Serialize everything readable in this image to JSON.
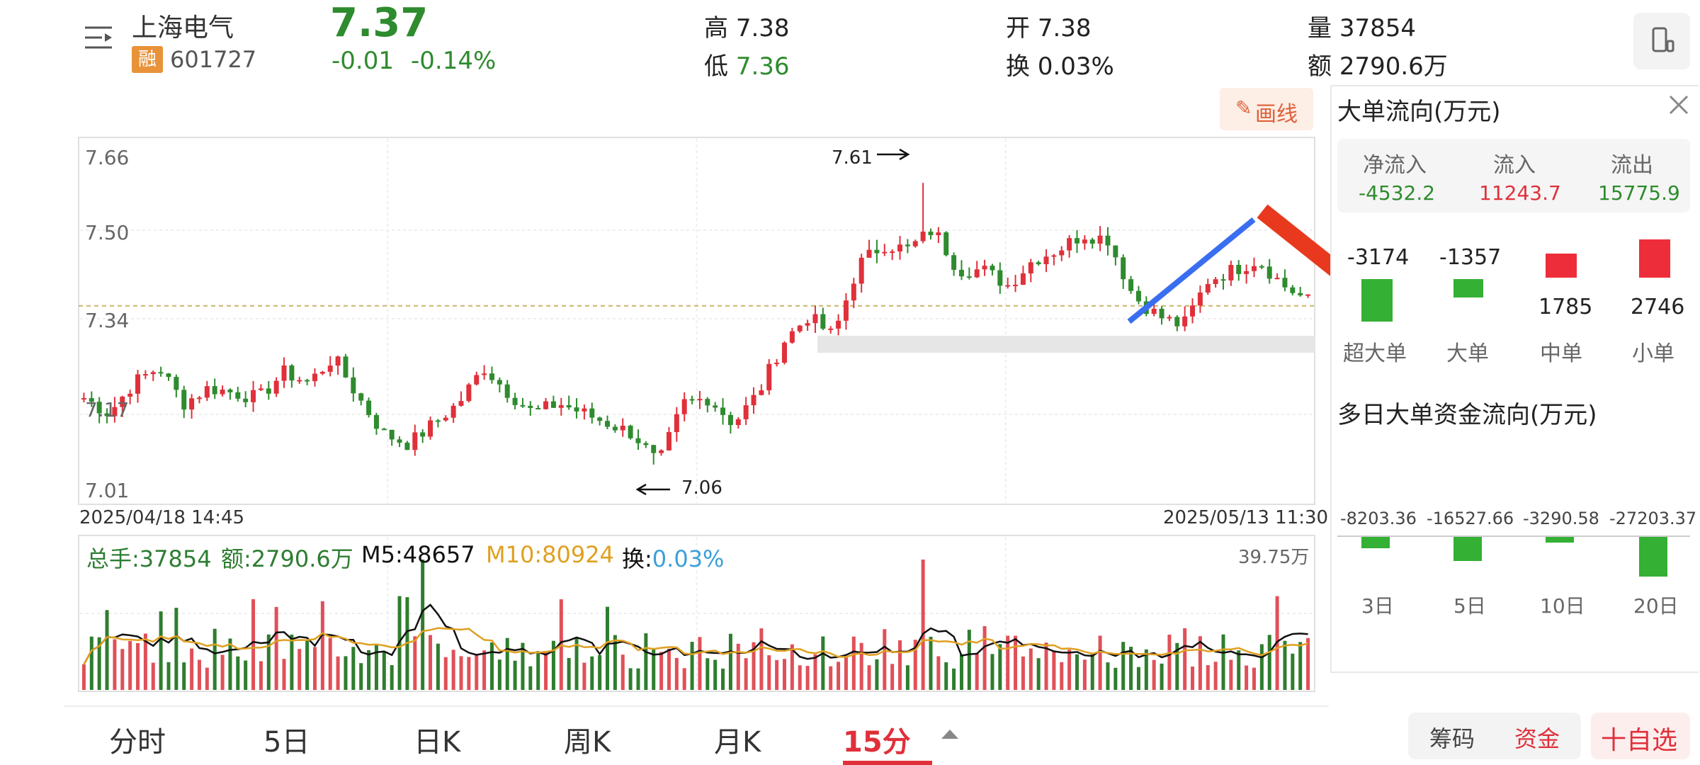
{
  "header": {
    "stock_name": "上海电气",
    "margin_badge": "融",
    "stock_code": "601727",
    "price": "7.37",
    "change": "-0.01",
    "change_pct": "-0.14%",
    "high_label": "高",
    "high_value": "7.38",
    "low_label": "低",
    "low_value": "7.36",
    "open_label": "开",
    "open_value": "7.38",
    "turnover_label": "换",
    "turnover_value": "0.03%",
    "volume_label": "量",
    "volume_value": "37854",
    "amount_label": "额",
    "amount_value": "2790.6万"
  },
  "toolbar": {
    "draw_label": "画线"
  },
  "price_chart": {
    "y_ticks": [
      "7.66",
      "7.50",
      "7.34",
      "7.17",
      "7.01"
    ],
    "max_label": "7.61",
    "min_label": "7.06",
    "start_date": "2025/04/18 14:45",
    "end_date": "2025/05/13 11:30"
  },
  "volume_chart": {
    "total_label": "总手:37854",
    "amount_label": "额:2790.6万",
    "m5_label": "M5:48657",
    "m10_label": "M10:80924",
    "turnover_prefix": "换:",
    "turnover_value": "0.03%",
    "max_label": "39.75万"
  },
  "flow_panel": {
    "title": "大单流向(万元)",
    "net_in_label": "净流入",
    "net_in_value": "-4532.2",
    "in_label": "流入",
    "in_value": "11243.7",
    "out_label": "流出",
    "out_value": "15775.9",
    "bars": [
      {
        "label": "超大单",
        "value": "-3174"
      },
      {
        "label": "大单",
        "value": "-1357"
      },
      {
        "label": "中单",
        "value": "1785"
      },
      {
        "label": "小单",
        "value": "2746"
      }
    ],
    "multi_title": "多日大单资金流向(万元)",
    "multi_bars": [
      {
        "label": "3日",
        "value": "-8203.36"
      },
      {
        "label": "5日",
        "value": "-16527.66"
      },
      {
        "label": "10日",
        "value": "-3290.58"
      },
      {
        "label": "20日",
        "value": "-27203.37"
      }
    ]
  },
  "bottom_tabs": [
    "分时",
    "5日",
    "日K",
    "周K",
    "月K",
    "15分"
  ],
  "bottom_buttons": {
    "chips": "筹码",
    "funds": "资金",
    "add_watch": "十自选"
  },
  "colors": {
    "up": "#e0303a",
    "down": "#2e8b2e",
    "ma5": "#111111",
    "ma10": "#e0a020",
    "turnover": "#3aa0d8"
  },
  "chart_data": {
    "type": "candlestick",
    "ylim": [
      7.01,
      7.66
    ],
    "anchor_prices": [
      7.19,
      7.16,
      7.22,
      7.25,
      7.18,
      7.21,
      7.2,
      7.19,
      7.24,
      7.22,
      7.27,
      7.19,
      7.12,
      7.1,
      7.14,
      7.18,
      7.25,
      7.2,
      7.16,
      7.18,
      7.16,
      7.14,
      7.12,
      7.06,
      7.18,
      7.19,
      7.14,
      7.2,
      7.3,
      7.35,
      7.31,
      7.45,
      7.49,
      7.48,
      7.52,
      7.44,
      7.44,
      7.41,
      7.46,
      7.48,
      7.51,
      7.5,
      7.39,
      7.35,
      7.33,
      7.42,
      7.44,
      7.46,
      7.41,
      7.38
    ],
    "max_price": 7.61,
    "min_price": 7.06,
    "reference_price": 7.37
  }
}
